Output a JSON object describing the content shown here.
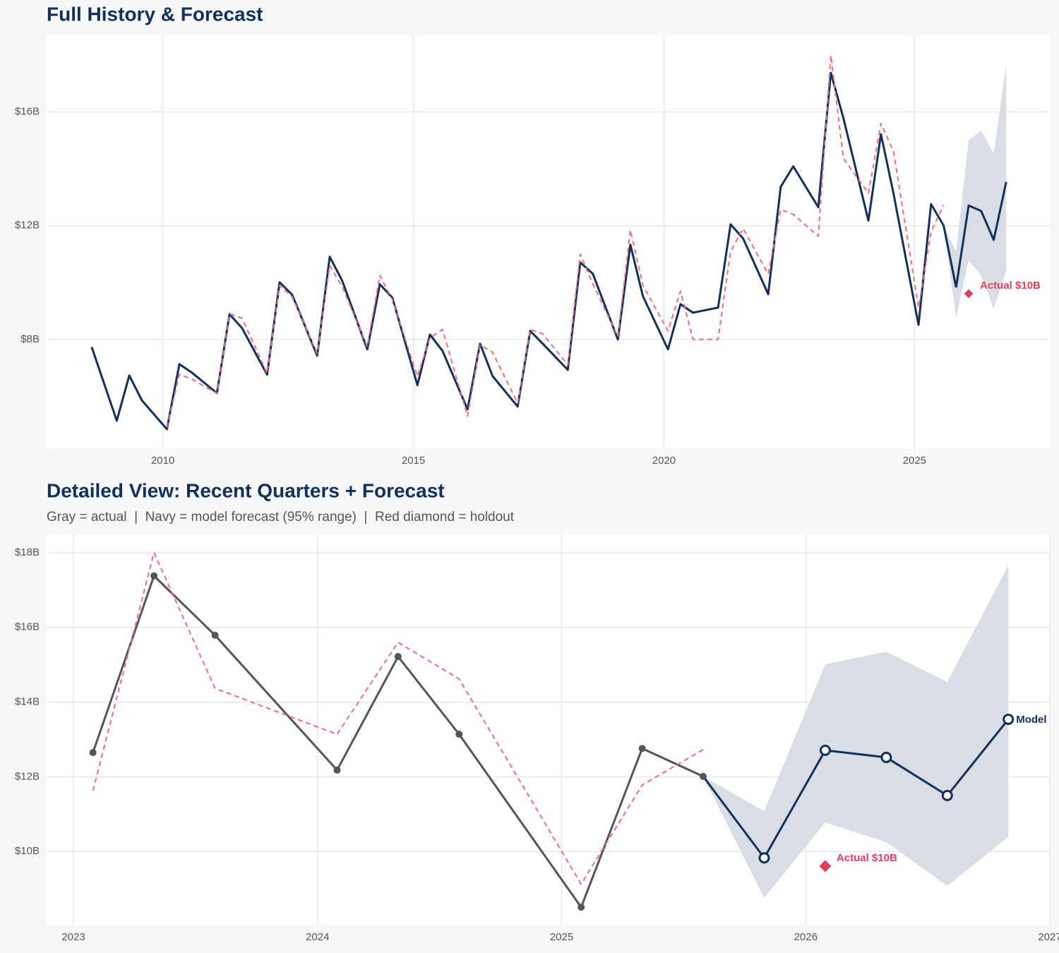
{
  "chart_data": [
    {
      "type": "line",
      "title": "Full History & Forecast",
      "xlim": [
        2007.68,
        2027.7
      ],
      "xticks": [
        2010,
        2015,
        2020,
        2025
      ],
      "ylim": [
        4.17,
        18.7
      ],
      "yticks": [
        {
          "value": 8,
          "label": "$8B"
        },
        {
          "value": 12,
          "label": "$12B"
        },
        {
          "value": 16,
          "label": "$16B"
        }
      ],
      "grid": true,
      "series": [
        {
          "color": "#12305a",
          "dash": false,
          "markers": "none",
          "x": [
            2008.58,
            2009.08,
            2009.33,
            2009.58,
            2010.08,
            2010.33,
            2010.58,
            2011.08,
            2011.33,
            2011.58,
            2012.08,
            2012.33,
            2012.58,
            2013.08,
            2013.33,
            2013.58,
            2014.08,
            2014.33,
            2014.58,
            2015.08,
            2015.33,
            2015.58,
            2016.08,
            2016.33,
            2016.58,
            2017.08,
            2017.33,
            2017.58,
            2018.08,
            2018.33,
            2018.58,
            2019.08,
            2019.33,
            2019.58,
            2020.08,
            2020.33,
            2020.58,
            2021.08,
            2021.33,
            2021.58,
            2022.08,
            2022.33,
            2022.58,
            2023.08,
            2023.33,
            2023.58,
            2024.08,
            2024.33,
            2024.58,
            2025.08,
            2025.33,
            2025.58
          ],
          "values": [
            7.73,
            5.14,
            6.73,
            5.86,
            4.84,
            7.13,
            6.83,
            6.11,
            8.89,
            8.4,
            6.76,
            10.01,
            9.57,
            7.43,
            10.91,
            10.06,
            7.65,
            9.94,
            9.47,
            6.39,
            8.17,
            7.6,
            5.54,
            7.85,
            6.71,
            5.64,
            8.3,
            7.85,
            6.93,
            10.71,
            10.31,
            8.0,
            11.33,
            9.52,
            7.65,
            9.24,
            8.94,
            9.12,
            12.05,
            11.55,
            9.59,
            13.37,
            14.09,
            12.65,
            17.38,
            15.79,
            12.18,
            15.22,
            13.14,
            8.51,
            12.76,
            12.01
          ]
        },
        {
          "color": "#e8707f",
          "dash": true,
          "markers": "none",
          "x": [
            2010.08,
            2010.33,
            2010.58,
            2011.08,
            2011.33,
            2011.58,
            2012.08,
            2012.33,
            2012.58,
            2013.08,
            2013.33,
            2013.58,
            2014.08,
            2014.33,
            2014.58,
            2015.08,
            2015.33,
            2015.58,
            2016.08,
            2016.33,
            2016.58,
            2017.08,
            2017.33,
            2017.58,
            2018.08,
            2018.33,
            2018.58,
            2019.08,
            2019.33,
            2019.58,
            2020.08,
            2020.33,
            2020.58,
            2021.08,
            2021.33,
            2021.58,
            2022.08,
            2022.33,
            2022.58,
            2023.08,
            2023.33,
            2023.58,
            2024.08,
            2024.33,
            2024.58,
            2025.08,
            2025.33,
            2025.58
          ],
          "values": [
            4.9,
            6.77,
            6.6,
            6.1,
            8.9,
            8.75,
            6.8,
            9.9,
            9.5,
            7.5,
            10.6,
            9.85,
            7.75,
            10.25,
            9.4,
            6.7,
            8.05,
            8.35,
            5.3,
            7.8,
            7.55,
            5.75,
            8.35,
            8.2,
            7.1,
            11.0,
            9.95,
            8.1,
            11.85,
            9.9,
            8.3,
            9.7,
            8.0,
            8.0,
            11.1,
            11.9,
            10.3,
            12.57,
            12.4,
            11.63,
            18.0,
            14.37,
            13.14,
            15.6,
            14.62,
            9.13,
            11.78,
            12.73
          ]
        },
        {
          "color": "#12305a",
          "dash": false,
          "markers": "none",
          "forecast": true,
          "x": [
            2025.83,
            2026.08,
            2026.33,
            2026.58,
            2026.83
          ],
          "values": [
            9.83,
            12.71,
            12.52,
            11.5,
            13.54
          ]
        }
      ],
      "band": {
        "color": "#d9dee5",
        "x": [
          2025.58,
          2025.83,
          2026.08,
          2026.33,
          2026.58,
          2026.83
        ],
        "lower": [
          12.01,
          8.76,
          10.78,
          10.25,
          9.08,
          10.4
        ],
        "upper": [
          12.01,
          11.08,
          15.01,
          15.35,
          14.54,
          17.66
        ]
      },
      "holdout": {
        "x": 2026.08,
        "value": 9.61,
        "label": "Actual $10B",
        "color": "#e0405e"
      }
    },
    {
      "type": "line",
      "title": "Detailed View: Recent Quarters + Forecast",
      "subtitle": "Gray = actual  |  Navy = model forecast (95% range)  |  Red diamond = holdout",
      "xlim": [
        2022.89,
        2027.0
      ],
      "xticks": [
        2023,
        2024,
        2025,
        2026,
        2027
      ],
      "ylim": [
        8.04,
        18.49
      ],
      "yticks": [
        {
          "value": 10,
          "label": "$10B"
        },
        {
          "value": 12,
          "label": "$12B"
        },
        {
          "value": 14,
          "label": "$14B"
        },
        {
          "value": 16,
          "label": "$16B"
        },
        {
          "value": 18,
          "label": "$18B"
        }
      ],
      "grid": true,
      "series": [
        {
          "color": "#555555",
          "dash": false,
          "markers": "filled",
          "x": [
            2023.08,
            2023.33,
            2023.58,
            2024.08,
            2024.33,
            2024.58,
            2025.08,
            2025.33,
            2025.58
          ],
          "values": [
            12.65,
            17.38,
            15.79,
            12.18,
            15.22,
            13.14,
            8.51,
            12.76,
            12.01
          ]
        },
        {
          "color": "#e8707f",
          "dash": true,
          "markers": "none",
          "x": [
            2023.08,
            2023.33,
            2023.58,
            2024.08,
            2024.33,
            2024.58,
            2025.08,
            2025.33,
            2025.58
          ],
          "values": [
            11.63,
            18.0,
            14.37,
            13.14,
            15.6,
            14.62,
            9.13,
            11.78,
            12.73
          ]
        },
        {
          "color": "#12305a",
          "dash": false,
          "markers": "open",
          "forecast": true,
          "x": [
            2025.83,
            2026.08,
            2026.33,
            2026.58,
            2026.83
          ],
          "values": [
            9.83,
            12.71,
            12.52,
            11.5,
            13.54
          ],
          "end_label": "Model"
        }
      ],
      "band": {
        "color": "#d9dee5",
        "x": [
          2025.58,
          2025.83,
          2026.08,
          2026.33,
          2026.58,
          2026.83
        ],
        "lower": [
          12.01,
          8.76,
          10.78,
          10.25,
          9.08,
          10.4
        ],
        "upper": [
          12.01,
          11.08,
          15.01,
          15.35,
          14.54,
          17.66
        ]
      },
      "holdout": {
        "x": 2026.08,
        "value": 9.61,
        "label": "Actual $10B",
        "color": "#e0405e"
      }
    }
  ]
}
